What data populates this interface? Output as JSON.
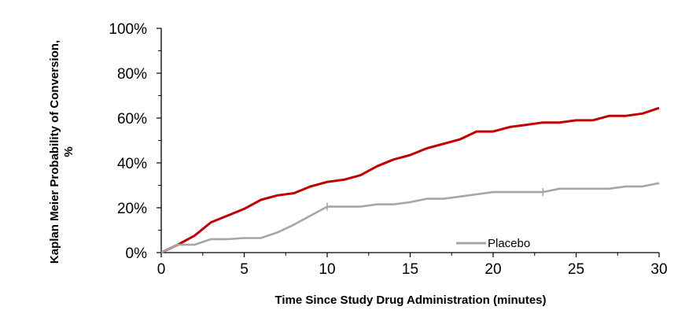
{
  "chart_data": {
    "type": "line",
    "title": "",
    "xlabel": "Time Since Study Drug Administration (minutes)",
    "ylabel": "Kaplan Meier Probability of Conversion, %",
    "xlim": [
      0,
      30
    ],
    "ylim": [
      0,
      100
    ],
    "x_ticks": [
      0,
      5,
      10,
      15,
      20,
      25,
      30
    ],
    "x_tick_labels": [
      "0",
      "5",
      "10",
      "15",
      "20",
      "25",
      "30"
    ],
    "y_ticks": [
      0,
      20,
      40,
      60,
      80,
      100
    ],
    "y_tick_labels": [
      "0%",
      "20%",
      "40%",
      "60%",
      "80%",
      "100%"
    ],
    "grid": false,
    "legend_position": "bottom-center",
    "series": [
      {
        "name": "",
        "color": "#c00000",
        "x": [
          0,
          1,
          2,
          3,
          4,
          5,
          6,
          7,
          8,
          9,
          10,
          11,
          12,
          13,
          14,
          15,
          16,
          17,
          18,
          19,
          20,
          21,
          22,
          23,
          24,
          25,
          26,
          27,
          28,
          29,
          30
        ],
        "y": [
          0,
          3.5,
          7.5,
          13.5,
          16.5,
          19.5,
          23.5,
          25.5,
          26.5,
          29.5,
          31.5,
          32.5,
          34.5,
          38.5,
          41.5,
          43.5,
          46.5,
          48.5,
          50.5,
          54,
          54,
          56,
          57,
          58,
          58,
          59,
          59,
          61,
          61,
          62,
          64.5
        ]
      },
      {
        "name": "Placebo",
        "color": "#a6a6a6",
        "x": [
          0,
          1,
          2,
          3,
          4,
          5,
          6,
          7,
          8,
          9,
          10,
          11,
          12,
          13,
          14,
          15,
          16,
          17,
          18,
          19,
          20,
          21,
          22,
          23,
          24,
          25,
          26,
          27,
          28,
          29,
          30
        ],
        "y": [
          0,
          3.5,
          3.5,
          6,
          6,
          6.5,
          6.5,
          9,
          12.5,
          16.5,
          20.5,
          20.5,
          20.5,
          21.5,
          21.5,
          22.5,
          24,
          24,
          25,
          26,
          27,
          27,
          27,
          27,
          28.5,
          28.5,
          28.5,
          28.5,
          29.5,
          29.5,
          31
        ],
        "censor_marks_x": [
          10,
          23
        ]
      }
    ]
  }
}
